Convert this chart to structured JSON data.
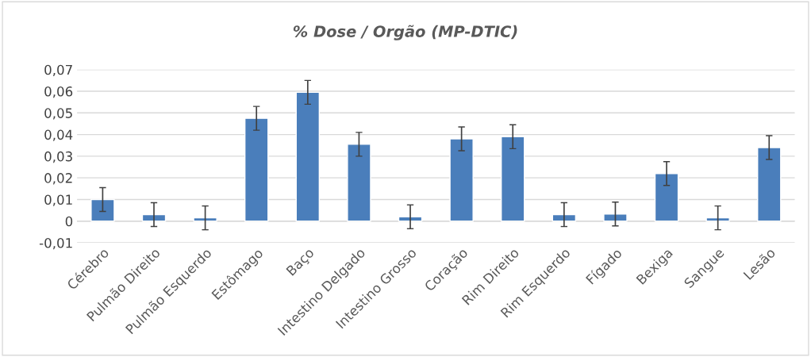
{
  "chart_data": {
    "type": "bar",
    "title": "% Dose / Orgão (MP-DTIC)",
    "categories": [
      "Cérebro",
      "Pulmão Direito",
      "Pulmão Esquerdo",
      "Estômago",
      "Baço",
      "Intestino Delgado",
      "Intestino Grosso",
      "Coração",
      "Rim Direito",
      "Rim Esquerdo",
      "Fígado",
      "Bexiga",
      "Sangue",
      "Lesão"
    ],
    "values": [
      0.01,
      0.003,
      0.0015,
      0.0475,
      0.0595,
      0.0355,
      0.002,
      0.038,
      0.039,
      0.003,
      0.0033,
      0.022,
      0.0015,
      0.034
    ],
    "errors": [
      0.0055,
      0.0055,
      0.0055,
      0.0055,
      0.0055,
      0.0055,
      0.0055,
      0.0055,
      0.0055,
      0.0055,
      0.0055,
      0.0055,
      0.0055,
      0.0055
    ],
    "color": "#4a7ebb",
    "ylim": [
      -0.01,
      0.07
    ],
    "yticks": [
      {
        "value": -0.01,
        "label": "-0,01"
      },
      {
        "value": 0,
        "label": "0"
      },
      {
        "value": 0.01,
        "label": "0,01"
      },
      {
        "value": 0.02,
        "label": "0,02"
      },
      {
        "value": 0.03,
        "label": "0,03"
      },
      {
        "value": 0.04,
        "label": "0,04"
      },
      {
        "value": 0.05,
        "label": "0,05"
      },
      {
        "value": 0.06,
        "label": "0,06"
      },
      {
        "value": 0.07,
        "label": "0,07"
      }
    ],
    "grid": "y"
  }
}
